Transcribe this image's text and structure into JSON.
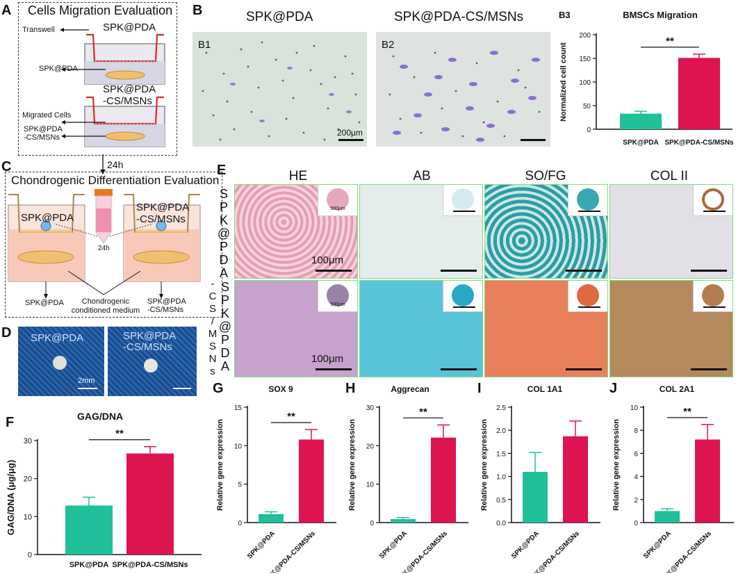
{
  "panels": {
    "A": {
      "letter": "A",
      "title": "Cells Migration Evaluation",
      "top_sample": "SPK@PDA",
      "transwell": "Transwell",
      "spk_pda": "SPK@PDA",
      "bottom_sample_l1": "SPK@PDA",
      "bottom_sample_l2": "-CS/MSNs",
      "migrated_cells": "Migrated Cells",
      "spk_cs_l1": "SPK@PDA",
      "spk_cs_l2": "-CS/MSNs",
      "arrow_time": "24h"
    },
    "B": {
      "letter": "B",
      "title_left": "SPK@PDA",
      "title_right": "SPK@PDA-CS/MSNs",
      "b1": "B1",
      "b2": "B2",
      "scale": "200μm"
    },
    "C": {
      "letter": "C",
      "title": "Chondrogenic Differentiation Evaluation",
      "left_sample": "SPK@PDA",
      "right_sample_l1": "SPK@PDA",
      "right_sample_l2": "-CS/MSNs",
      "time": "24h",
      "bottom_left": "SPK@PDA",
      "medium_l1": "Chondrogenic",
      "medium_l2": "conditioned medium",
      "bottom_right_l1": "SPK@PDA",
      "bottom_right_l2": "-CS/MSNs"
    },
    "D": {
      "letter": "D",
      "left": "SPK@PDA",
      "right_l1": "SPK@PDA",
      "right_l2": "-CS/MSNs",
      "scale": "2mm"
    },
    "E": {
      "letter": "E",
      "cols": [
        "HE",
        "AB",
        "SO/FG",
        "COL II"
      ],
      "row1_letters": [
        "S",
        "P",
        "K",
        "@",
        "P",
        "D",
        "A"
      ],
      "row2_letters": [
        "S",
        "P",
        "K",
        "@",
        "P",
        "D",
        "A"
      ],
      "row2_prefix": [
        "-",
        "C",
        "S",
        "/",
        "M",
        "S",
        "N",
        "s"
      ],
      "scale": "100μm",
      "inset_scale": "500μm"
    },
    "F": {
      "letter": "F"
    },
    "G": {
      "letter": "G"
    },
    "H": {
      "letter": "H"
    },
    "I": {
      "letter": "I"
    },
    "J": {
      "letter": "J"
    },
    "B3": {
      "letter": "B3"
    }
  },
  "colors": {
    "green": "#1fc09a",
    "red": "#dc1450"
  },
  "significance": "**",
  "chart_data": [
    {
      "id": "B3",
      "type": "bar",
      "title": "BMSCs Migration",
      "ylabel": "Normalized cell count",
      "categories": [
        "SPK@PDA",
        "SPK@PDA-CS/MSNs"
      ],
      "values": [
        33,
        151
      ],
      "errors": [
        5,
        8
      ],
      "ylim": [
        0,
        200
      ],
      "yticks": [
        0,
        50,
        100,
        150,
        200
      ],
      "yticklabels": [
        "0",
        "50",
        "100",
        "150",
        "200"
      ]
    },
    {
      "id": "F",
      "type": "bar",
      "title": "GAG/DNA",
      "ylabel": "GAG/DNA (μg/μg)",
      "categories": [
        "SPK@PDA",
        "SPK@PDA-CS/MSNs"
      ],
      "values": [
        12.9,
        26.6
      ],
      "errors": [
        2.2,
        1.8
      ],
      "ylim": [
        0,
        30
      ],
      "yticks": [
        0,
        10,
        20,
        30
      ],
      "yticklabels": [
        "0",
        "10",
        "20",
        "30"
      ]
    },
    {
      "id": "G",
      "type": "bar",
      "title": "SOX 9",
      "ylabel": "Relative gene expression",
      "categories": [
        "SPK@PDA",
        "SPK@PDA-CS/MSNs"
      ],
      "values": [
        1.1,
        10.8
      ],
      "errors": [
        0.3,
        1.3
      ],
      "ylim": [
        0,
        15
      ],
      "yticks": [
        0,
        5,
        10,
        15
      ],
      "yticklabels": [
        "0",
        "5",
        "10",
        "15"
      ]
    },
    {
      "id": "H",
      "type": "bar",
      "title": "Aggrecan",
      "ylabel": "Relative gene expression",
      "categories": [
        "SPK@PDA",
        "SPK@PDA-CS/MSNs"
      ],
      "values": [
        0.9,
        22.1
      ],
      "errors": [
        0.4,
        3.3
      ],
      "ylim": [
        0,
        30
      ],
      "yticks": [
        0,
        10,
        20,
        30
      ],
      "yticklabels": [
        "0",
        "10",
        "20",
        "30"
      ]
    },
    {
      "id": "I",
      "type": "bar",
      "title": "COL 1A1",
      "ylabel": "Relative gene expression",
      "categories": [
        "SPK@PDA",
        "SPK@PDA-CS/MSNs"
      ],
      "values": [
        1.1,
        1.87
      ],
      "errors": [
        0.42,
        0.33
      ],
      "ylim": [
        0,
        2.5
      ],
      "yticks": [
        0,
        0.5,
        1,
        1.5,
        2,
        2.5
      ],
      "yticklabels": [
        "0.0",
        "0.5",
        "1.0",
        "1.5",
        "2.0",
        "2.5"
      ]
    },
    {
      "id": "J",
      "type": "bar",
      "title": "COL 2A1",
      "ylabel": "Relative gene expression",
      "categories": [
        "SPK@PDA",
        "SPK@PDA-CS/MSNs"
      ],
      "values": [
        1.0,
        7.2
      ],
      "errors": [
        0.2,
        1.3
      ],
      "ylim": [
        0,
        10
      ],
      "yticks": [
        0,
        2,
        4,
        6,
        8,
        10
      ],
      "yticklabels": [
        "0",
        "2",
        "4",
        "6",
        "8",
        "10"
      ]
    }
  ]
}
